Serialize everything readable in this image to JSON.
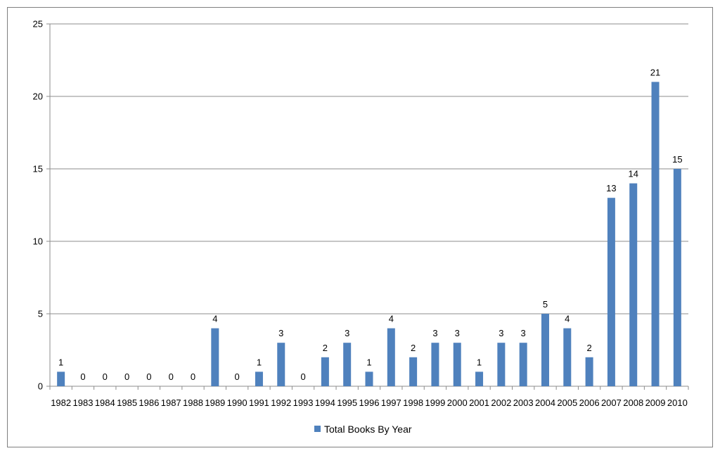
{
  "chart_data": {
    "type": "bar",
    "categories": [
      "1982",
      "1983",
      "1984",
      "1985",
      "1986",
      "1987",
      "1988",
      "1989",
      "1990",
      "1991",
      "1992",
      "1993",
      "1994",
      "1995",
      "1996",
      "1997",
      "1998",
      "1999",
      "2000",
      "2001",
      "2002",
      "2003",
      "2004",
      "2005",
      "2006",
      "2007",
      "2008",
      "2009",
      "2010"
    ],
    "series": [
      {
        "name": "Total Books By Year",
        "values": [
          1,
          0,
          0,
          0,
          0,
          0,
          0,
          4,
          0,
          1,
          3,
          0,
          2,
          3,
          1,
          4,
          2,
          3,
          3,
          1,
          3,
          3,
          5,
          4,
          2,
          13,
          14,
          21,
          15
        ],
        "color": "#4f81bd"
      }
    ],
    "ylim": [
      0,
      25
    ],
    "yticks": [
      0,
      5,
      10,
      15,
      20,
      25
    ],
    "grid": true,
    "legend": "bottom",
    "data_labels": true
  }
}
